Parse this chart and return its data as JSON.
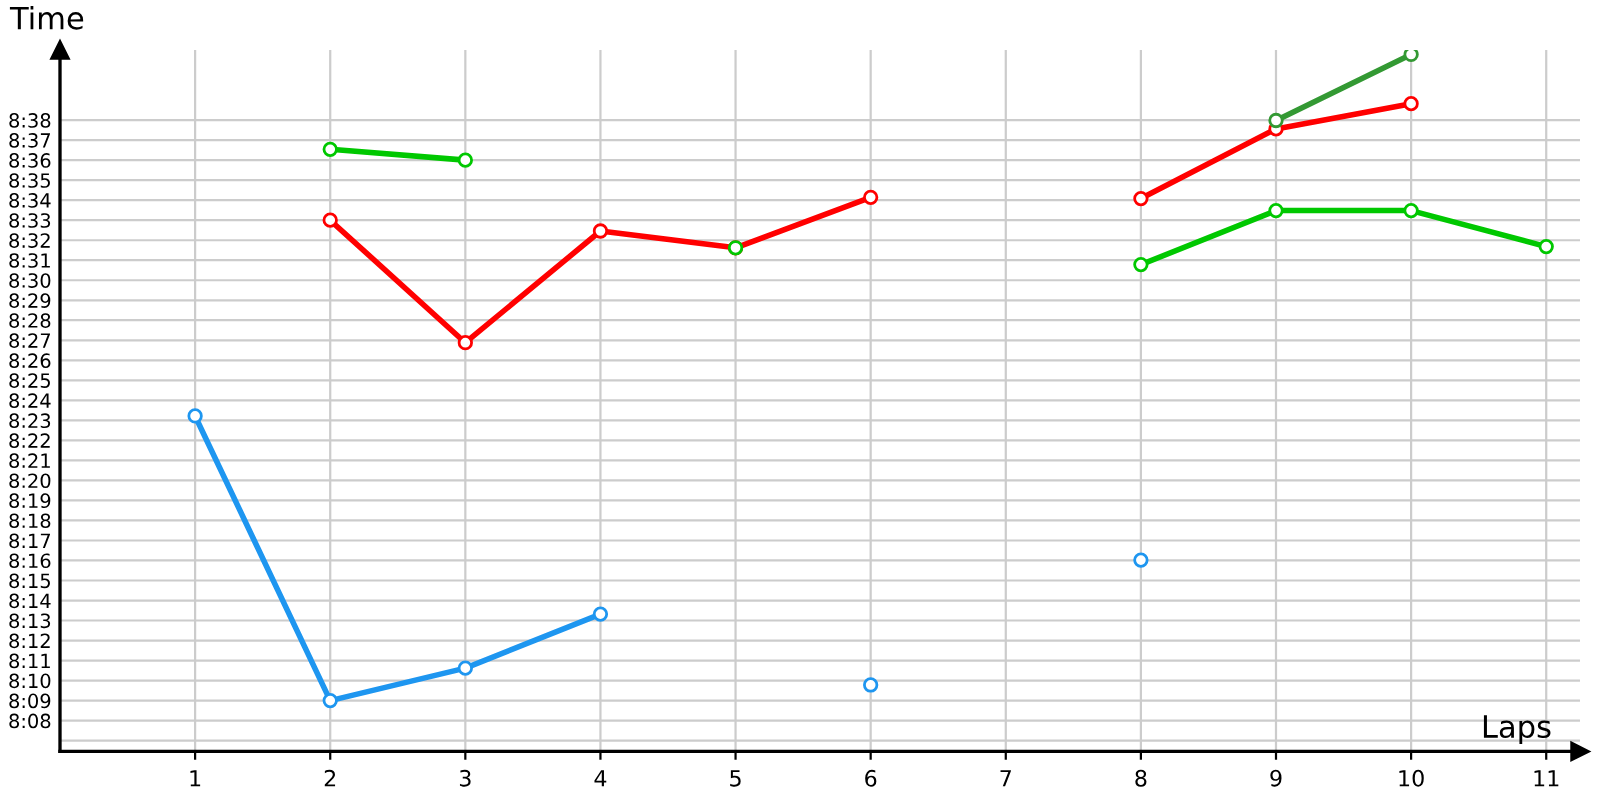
{
  "chart_data": {
    "type": "line",
    "ylabel": "Time",
    "xlabel": "Laps",
    "x": [
      1,
      2,
      3,
      4,
      5,
      6,
      7,
      8,
      9,
      10,
      11
    ],
    "xlim": [
      0,
      11.25
    ],
    "xticks": [
      1,
      2,
      3,
      4,
      5,
      6,
      7,
      8,
      9,
      10,
      11
    ],
    "ylim": [
      8.1077,
      8.6917
    ],
    "yticks": [
      {
        "value": 8.1167,
        "label": null
      },
      {
        "value": 8.1333,
        "label": "8:08"
      },
      {
        "value": 8.15,
        "label": "8:09"
      },
      {
        "value": 8.1667,
        "label": "8:10"
      },
      {
        "value": 8.1833,
        "label": "8:11"
      },
      {
        "value": 8.2,
        "label": "8:12"
      },
      {
        "value": 8.2167,
        "label": "8:13"
      },
      {
        "value": 8.2333,
        "label": "8:14"
      },
      {
        "value": 8.25,
        "label": "8:15"
      },
      {
        "value": 8.2667,
        "label": "8:16"
      },
      {
        "value": 8.2833,
        "label": "8:17"
      },
      {
        "value": 8.3,
        "label": "8:18"
      },
      {
        "value": 8.3167,
        "label": "8:19"
      },
      {
        "value": 8.3333,
        "label": "8:20"
      },
      {
        "value": 8.35,
        "label": "8:21"
      },
      {
        "value": 8.3667,
        "label": "8:22"
      },
      {
        "value": 8.3833,
        "label": "8:23"
      },
      {
        "value": 8.4,
        "label": "8:24"
      },
      {
        "value": 8.4167,
        "label": "8:25"
      },
      {
        "value": 8.4333,
        "label": "8:26"
      },
      {
        "value": 8.45,
        "label": "8:27"
      },
      {
        "value": 8.4667,
        "label": "8:28"
      },
      {
        "value": 8.4833,
        "label": "8:29"
      },
      {
        "value": 8.5,
        "label": "8:30"
      },
      {
        "value": 8.5167,
        "label": "8:31"
      },
      {
        "value": 8.5333,
        "label": "8:32"
      },
      {
        "value": 8.55,
        "label": "8:33"
      },
      {
        "value": 8.5667,
        "label": "8:34"
      },
      {
        "value": 8.5833,
        "label": "8:35"
      },
      {
        "value": 8.6,
        "label": "8:36"
      },
      {
        "value": 8.6167,
        "label": "8:37"
      },
      {
        "value": 8.6333,
        "label": "8:38"
      }
    ],
    "grid": true,
    "marker": "circle",
    "line_style": "solid",
    "legend": false,
    "series": [
      {
        "color": "#ff0000",
        "values": [
          null,
          8.55,
          8.448,
          8.541,
          8.527,
          8.569,
          null,
          8.568,
          8.626,
          8.647,
          null
        ]
      },
      {
        "color": "#1e96f0",
        "values": [
          8.387,
          8.15,
          8.177,
          8.222,
          null,
          8.163,
          null,
          8.267,
          null,
          null,
          null
        ]
      },
      {
        "color": "#00c800",
        "values": [
          null,
          8.609,
          8.6,
          null,
          8.527,
          null,
          null,
          8.513,
          8.558,
          8.558,
          8.528
        ]
      },
      {
        "color": "#339933",
        "x": [
          9,
          10
        ],
        "values": [
          8.633,
          8.688
        ]
      }
    ]
  }
}
